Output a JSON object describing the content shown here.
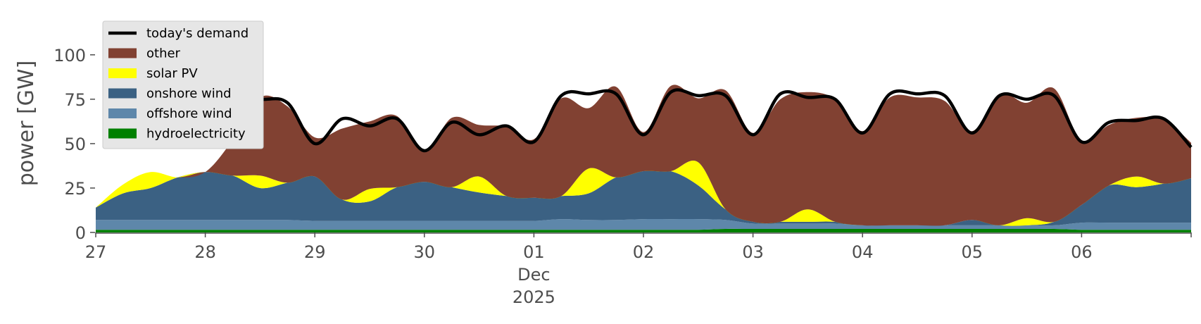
{
  "chart_data": {
    "type": "area",
    "title": "",
    "ylabel": "power [GW]",
    "ylim": [
      0,
      115
    ],
    "yticks": [
      0,
      25,
      50,
      75,
      100
    ],
    "xlim": [
      "2025-11-27T00:00",
      "2025-12-07T00:00"
    ],
    "x_tick_labels": [
      "27",
      "28",
      "29",
      "30",
      "01",
      "02",
      "03",
      "04",
      "05",
      "06"
    ],
    "x_tick_days": [
      0,
      1,
      2,
      3,
      4,
      5,
      6,
      7,
      8,
      9
    ],
    "x_sublabels": [
      "Dec",
      "2025"
    ],
    "grid": false,
    "legend_position": "top-left",
    "legend": [
      "today's demand",
      "other",
      "solar PV",
      "onshore wind",
      "offshore wind",
      "hydroelectricity"
    ],
    "colors": {
      "demand": "#000000",
      "other": "#814132",
      "solar": "#ffff00",
      "onshore": "#3b6183",
      "offshore": "#5e87aa",
      "hydro": "#008000",
      "legend_bg": "#e6e6e6"
    },
    "x": [
      "2025-11-27T00:00",
      "2025-11-27T06:00",
      "2025-11-27T12:00",
      "2025-11-27T18:00",
      "2025-11-28T00:00",
      "2025-11-28T06:00",
      "2025-11-28T12:00",
      "2025-11-28T18:00",
      "2025-11-29T00:00",
      "2025-11-29T06:00",
      "2025-11-29T12:00",
      "2025-11-29T18:00",
      "2025-11-30T00:00",
      "2025-11-30T06:00",
      "2025-11-30T12:00",
      "2025-11-30T18:00",
      "2025-12-01T00:00",
      "2025-12-01T06:00",
      "2025-12-01T12:00",
      "2025-12-01T18:00",
      "2025-12-02T00:00",
      "2025-12-02T06:00",
      "2025-12-02T12:00",
      "2025-12-02T18:00",
      "2025-12-03T00:00",
      "2025-12-03T06:00",
      "2025-12-03T12:00",
      "2025-12-03T18:00",
      "2025-12-04T00:00",
      "2025-12-04T06:00",
      "2025-12-04T12:00",
      "2025-12-04T18:00",
      "2025-12-05T00:00",
      "2025-12-05T06:00",
      "2025-12-05T12:00",
      "2025-12-05T18:00",
      "2025-12-06T00:00",
      "2025-12-06T06:00",
      "2025-12-06T12:00",
      "2025-12-06T18:00",
      "2025-12-07T00:00"
    ],
    "series": [
      {
        "name": "hydroelectricity",
        "key": "hydro",
        "values": [
          1.5,
          1.5,
          1.5,
          1.5,
          1.5,
          1.5,
          1.5,
          1.5,
          1.5,
          1.5,
          1.5,
          1.5,
          1.5,
          1.5,
          1.5,
          1.5,
          1.5,
          1.5,
          1.5,
          1.5,
          1.5,
          1.5,
          1.5,
          2,
          2,
          2,
          2,
          2,
          2,
          2,
          2,
          2,
          2,
          2,
          2,
          2,
          1.5,
          1.5,
          1.5,
          1.5,
          1.5
        ]
      },
      {
        "name": "offshore wind",
        "key": "offshore",
        "values": [
          5.5,
          5.5,
          5.5,
          5.5,
          5.5,
          5.5,
          5.5,
          5.5,
          5,
          5,
          5,
          5,
          5,
          5,
          5,
          5,
          5,
          6,
          5.5,
          5.5,
          6,
          6,
          6,
          5,
          3,
          3,
          3,
          3,
          2,
          2,
          2,
          2,
          2,
          2,
          2,
          2,
          4,
          4,
          4,
          4,
          4
        ]
      },
      {
        "name": "onshore wind",
        "key": "onshore",
        "values": [
          7,
          15,
          18,
          24,
          27,
          25,
          18,
          21,
          25,
          12,
          11,
          19,
          22,
          19,
          16,
          14,
          13,
          13,
          15,
          24,
          27,
          27,
          19,
          6,
          1,
          1,
          1,
          1,
          0,
          0,
          0,
          0,
          3,
          0,
          0,
          2,
          10,
          21,
          20,
          22,
          25
        ]
      },
      {
        "name": "solar PV",
        "key": "solar",
        "values": [
          0,
          5,
          9,
          0,
          0,
          0,
          7,
          0,
          0,
          0,
          7,
          0,
          0,
          0,
          9,
          0,
          0,
          0,
          14,
          0,
          0,
          0,
          13,
          0,
          0,
          0,
          7,
          0,
          0,
          0,
          0,
          0,
          0,
          0,
          4,
          0,
          0,
          0,
          6,
          0,
          0
        ]
      },
      {
        "name": "other",
        "key": "other",
        "values": [
          0,
          0,
          0,
          0,
          0,
          20,
          44,
          43,
          22,
          40,
          38,
          40,
          17,
          39,
          29,
          39,
          33,
          55,
          34,
          51,
          22,
          48,
          36,
          67,
          50,
          69,
          66,
          69,
          53,
          72,
          72,
          70,
          50,
          74,
          65,
          75,
          36,
          34,
          33,
          36,
          20
        ]
      },
      {
        "name": "today's demand",
        "key": "demand",
        "type": "line",
        "start": "2025-11-28T00:00",
        "values": [
          null,
          null,
          null,
          null,
          58,
          77,
          75,
          73,
          50,
          64,
          60,
          64,
          46,
          62,
          55,
          60,
          51,
          77,
          78,
          78,
          55,
          79,
          77,
          77,
          55,
          78,
          76,
          75,
          56,
          78,
          78,
          77,
          56,
          77,
          75,
          77,
          51,
          62,
          63,
          64,
          48
        ]
      }
    ]
  }
}
